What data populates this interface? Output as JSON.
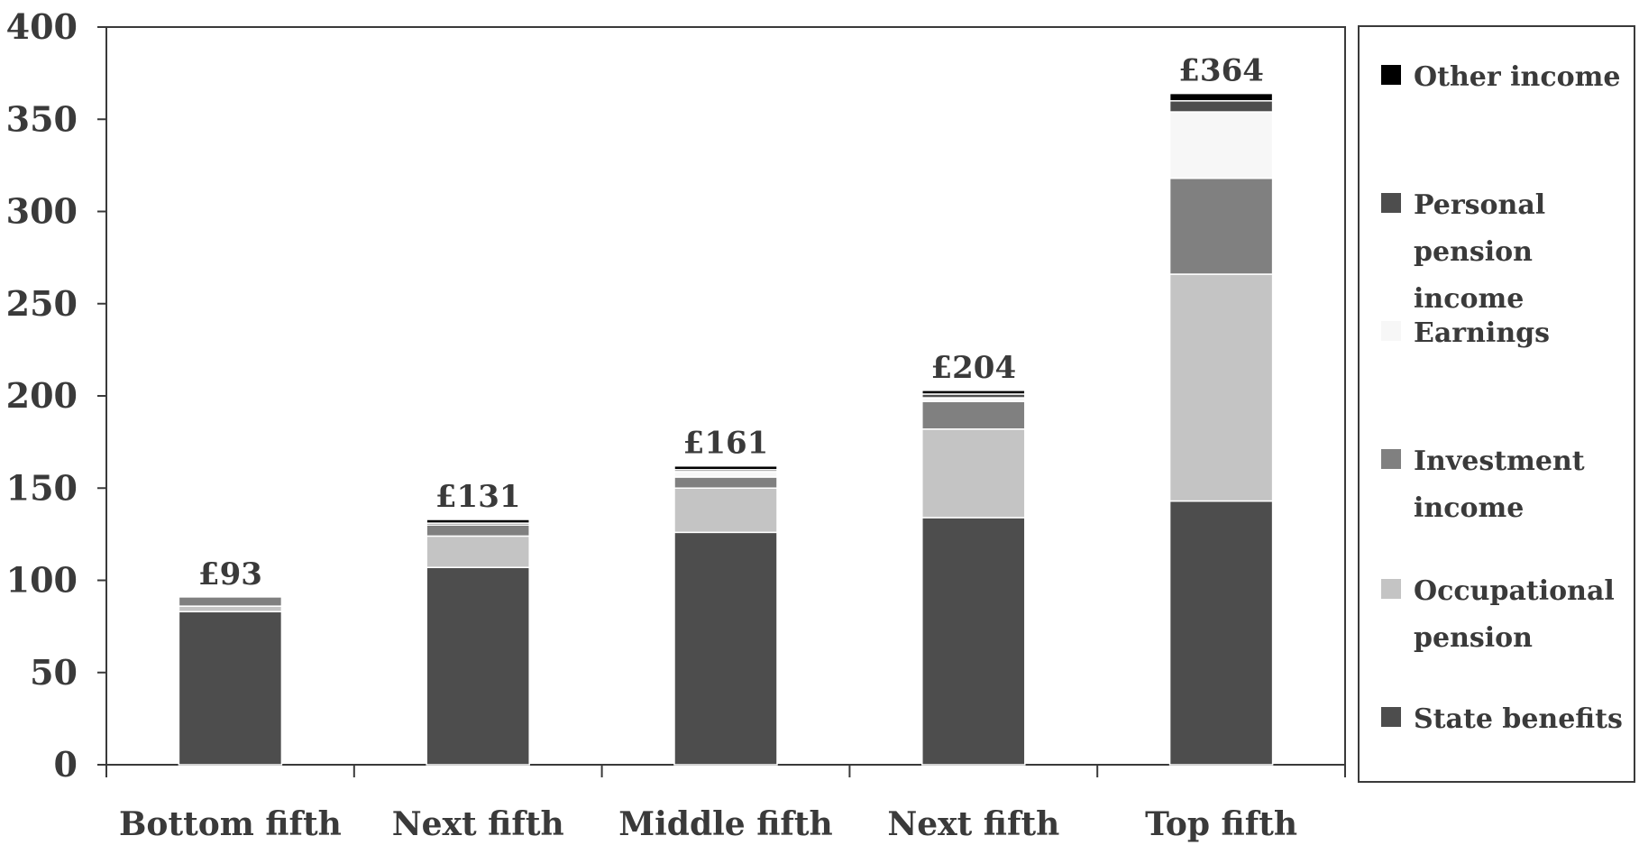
{
  "chart_data": {
    "type": "bar",
    "stacked": true,
    "categories": [
      "Bottom fifth",
      "Next fifth",
      "Middle fifth",
      "Next fifth",
      "Top fifth"
    ],
    "ylim": [
      0,
      400
    ],
    "yticks": [
      0,
      50,
      100,
      150,
      200,
      250,
      300,
      350,
      400
    ],
    "totals": [
      "£93",
      "£131",
      "£161",
      "£204",
      "£364"
    ],
    "series": [
      {
        "name": "State benefits",
        "color": "#4d4d4d",
        "values": [
          83,
          107,
          126,
          134,
          143
        ]
      },
      {
        "name": "Occupational pension",
        "color": "#c4c4c4",
        "values": [
          3,
          17,
          24,
          48,
          123
        ]
      },
      {
        "name": "Investment income",
        "color": "#808080",
        "values": [
          5,
          6,
          6,
          15,
          52
        ]
      },
      {
        "name": "Earnings",
        "color": "#f7f7f7",
        "values": [
          0,
          0,
          3,
          2,
          36
        ]
      },
      {
        "name": "Personal pension income",
        "color": "#4d4d4d",
        "values": [
          0,
          1,
          1,
          2,
          6
        ]
      },
      {
        "name": "Other income",
        "color": "#000000",
        "values": [
          0,
          2,
          2,
          2,
          4
        ]
      }
    ],
    "legend_position": "right",
    "legend_labels": [
      [
        "Other income"
      ],
      [
        "Personal",
        "pension",
        "income"
      ],
      [
        "Earnings"
      ],
      [
        "Investment",
        "income"
      ],
      [
        "Occupational",
        "pension"
      ],
      [
        "State benefits"
      ]
    ],
    "grid": false
  }
}
